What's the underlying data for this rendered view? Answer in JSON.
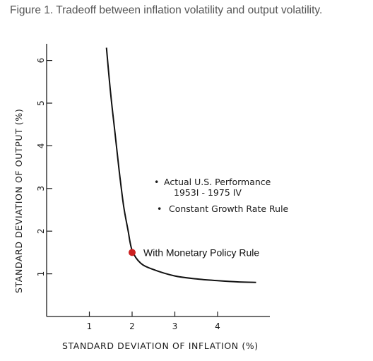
{
  "figure_title": "Figure 1. Tradeoff between inflation volatility and output volatility.",
  "colors": {
    "curve": "#111111",
    "highlight_point": "#cc2020",
    "title": "#555555"
  },
  "chart_data": {
    "type": "line",
    "title": "Figure 1. Tradeoff between inflation volatility and output volatility.",
    "xlabel": "STANDARD DEVIATION OF INFLATION (%)",
    "ylabel": "STANDARD DEVIATION OF OUTPUT (%)",
    "xlim": [
      0,
      5
    ],
    "ylim": [
      0,
      6.5
    ],
    "x_ticks": [
      1,
      2,
      3,
      4
    ],
    "y_ticks": [
      1,
      2,
      3,
      4,
      5,
      6
    ],
    "grid": false,
    "series": [
      {
        "x": [
          1.4,
          1.5,
          1.6,
          1.7,
          1.8,
          1.9,
          2.0,
          2.2,
          2.5,
          3.0,
          3.5,
          4.0,
          4.5,
          4.9
        ],
        "y": [
          6.3,
          5.2,
          4.3,
          3.4,
          2.6,
          2.05,
          1.55,
          1.25,
          1.1,
          0.95,
          0.88,
          0.84,
          0.81,
          0.8
        ]
      }
    ],
    "highlight": {
      "x": 2.0,
      "y": 1.5,
      "label": "With Monetary Policy Rule"
    },
    "annotations": [
      {
        "bullet": "•",
        "lines": [
          "Actual U.S. Performance",
          "1953I - 1975 IV"
        ]
      },
      {
        "bullet": "•",
        "lines": [
          "Constant Growth Rate Rule"
        ]
      }
    ]
  }
}
